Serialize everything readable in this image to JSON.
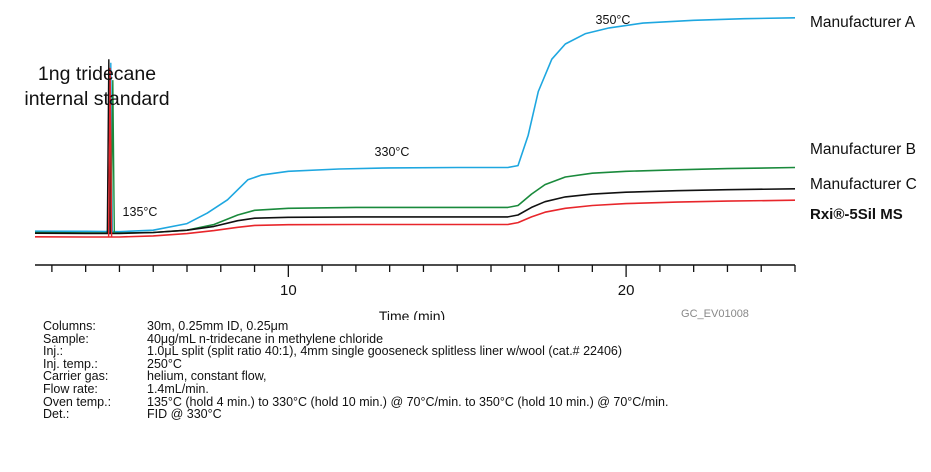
{
  "chart_data": {
    "type": "line",
    "xlabel": "Time (min)",
    "x_ticks": [
      10,
      20
    ],
    "xlim": [
      2.5,
      25.0
    ],
    "y_axis": "none",
    "grid": false,
    "legend": "labels at right end of each trace",
    "annotation_ids": "GC_EV01008",
    "peak_label": "1ng tridecane\ninternal standard",
    "temp_labels": [
      {
        "text": "135°C",
        "x": 6.5
      },
      {
        "text": "330°C",
        "x": 13.5
      },
      {
        "text": "350°C",
        "x": 18.5
      }
    ],
    "series": [
      {
        "name": "Manufacturer A",
        "color": "#1ea7e0",
        "x": [
          2.5,
          4.0,
          5.0,
          6.0,
          7.0,
          7.6,
          8.2,
          8.8,
          9.2,
          10.0,
          11.5,
          13.0,
          15.0,
          16.5,
          16.8,
          17.1,
          17.4,
          17.8,
          18.2,
          18.8,
          19.5,
          20.5,
          22.0,
          23.5,
          25.0
        ],
        "y": [
          1.5,
          1.4,
          1.2,
          2.0,
          5.5,
          11.0,
          18.0,
          28.5,
          31.0,
          33.0,
          34.2,
          34.8,
          35.0,
          35.0,
          36.0,
          52.0,
          75.0,
          92.0,
          100.0,
          105.5,
          108.5,
          111.0,
          112.5,
          113.3,
          113.8
        ]
      },
      {
        "name": "Manufacturer B",
        "color": "#1a8a3c",
        "x": [
          2.5,
          4.0,
          5.0,
          6.0,
          7.0,
          7.8,
          8.5,
          9.0,
          10.0,
          12.0,
          14.0,
          16.5,
          16.8,
          17.2,
          17.6,
          18.2,
          19.0,
          20.0,
          21.5,
          23.0,
          25.0
        ],
        "y": [
          0.8,
          0.6,
          0.5,
          0.8,
          2.0,
          5.0,
          10.0,
          12.5,
          13.5,
          14.0,
          14.0,
          14.0,
          15.0,
          21.0,
          26.0,
          30.0,
          32.0,
          33.0,
          33.8,
          34.4,
          35.0
        ]
      },
      {
        "name": "Manufacturer C",
        "color": "#111111",
        "x": [
          2.5,
          4.0,
          5.0,
          6.0,
          7.0,
          7.8,
          8.5,
          9.0,
          10.0,
          12.0,
          14.0,
          16.5,
          16.8,
          17.2,
          17.6,
          18.2,
          19.0,
          20.0,
          21.5,
          23.0,
          25.0
        ],
        "y": [
          0.4,
          0.3,
          0.3,
          0.8,
          2.0,
          4.0,
          7.0,
          8.3,
          8.8,
          9.0,
          9.0,
          9.0,
          10.0,
          14.0,
          17.0,
          19.5,
          21.0,
          22.0,
          22.8,
          23.3,
          23.8
        ]
      },
      {
        "name": "Rxi®-5Sil MS",
        "color": "#e8262b",
        "x": [
          2.5,
          4.0,
          5.0,
          6.0,
          7.0,
          7.8,
          8.5,
          9.0,
          10.0,
          12.0,
          14.0,
          16.5,
          16.8,
          17.2,
          17.6,
          18.2,
          19.0,
          20.0,
          21.5,
          23.0,
          25.0
        ],
        "y": [
          -1.5,
          -1.6,
          -1.6,
          -1.0,
          0.2,
          1.8,
          3.5,
          4.5,
          4.9,
          5.0,
          5.0,
          5.0,
          6.0,
          9.0,
          11.5,
          13.5,
          15.0,
          16.0,
          16.8,
          17.3,
          17.8
        ]
      }
    ],
    "peak": {
      "x": 4.7,
      "height": 92
    }
  },
  "conditions": [
    {
      "key": "Columns:",
      "value": "30m, 0.25mm ID, 0.25μm"
    },
    {
      "key": "Sample:",
      "value": "40μg/mL n-tridecane in methylene chloride"
    },
    {
      "key": "Inj.:",
      "value": "1.0μL split (split ratio 40:1), 4mm single gooseneck splitless liner w/wool (cat.# 22406)"
    },
    {
      "key": "Inj. temp.:",
      "value": "250°C"
    },
    {
      "key": "Carrier gas:",
      "value": "helium, constant flow,"
    },
    {
      "key": "Flow rate:",
      "value": "1.4mL/min."
    },
    {
      "key": "Oven temp.:",
      "value": "135°C (hold 4 min.) to 330°C (hold 10 min.) @ 70°C/min. to 350°C (hold 10 min.) @ 70°C/min."
    },
    {
      "key": "Det.:",
      "value": "FID @ 330°C"
    }
  ]
}
